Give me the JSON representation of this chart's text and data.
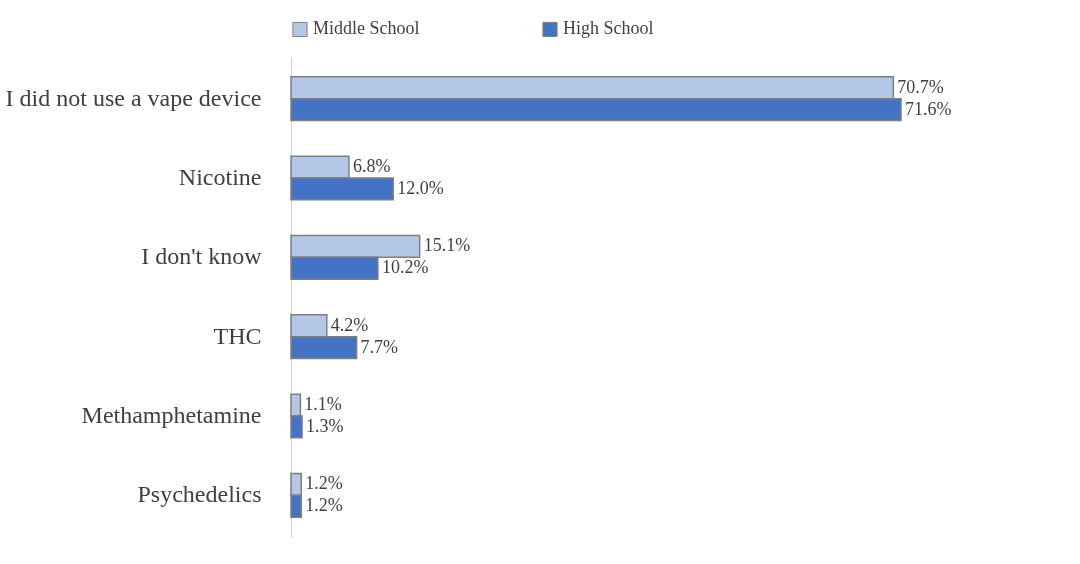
{
  "chart_data": {
    "type": "bar",
    "orientation": "horizontal",
    "legend": "top",
    "categories": [
      "I did not use a vape device",
      "Nicotine",
      "I don't know",
      "THC",
      "Methamphetamine",
      "Psychedelics"
    ],
    "series": [
      {
        "name": "Middle School",
        "color": "#b4c7e7",
        "values": [
          70.7,
          6.8,
          15.1,
          4.2,
          1.1,
          1.2
        ],
        "value_labels": [
          "70.7%",
          "6.8%",
          "15.1%",
          "4.2%",
          "1.1%",
          "1.2%"
        ]
      },
      {
        "name": "High School",
        "color": "#4472c4",
        "values": [
          71.6,
          12.0,
          10.2,
          7.7,
          1.3,
          1.2
        ],
        "value_labels": [
          "71.6%",
          "12.0%",
          "10.2%",
          "7.7%",
          "1.3%",
          "1.2%"
        ]
      }
    ]
  }
}
